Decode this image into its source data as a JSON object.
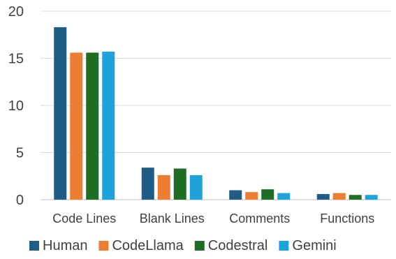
{
  "chart_data": {
    "type": "bar",
    "title": "",
    "xlabel": "",
    "ylabel": "",
    "categories": [
      "Code Lines",
      "Blank Lines",
      "Comments",
      "Functions"
    ],
    "series": [
      {
        "name": "Human",
        "color": "#1f5c86",
        "values": [
          18.3,
          3.4,
          1.0,
          0.6
        ]
      },
      {
        "name": "CodeLlama",
        "color": "#ed7d31",
        "values": [
          15.6,
          2.6,
          0.8,
          0.7
        ]
      },
      {
        "name": "Codestral",
        "color": "#1f6d24",
        "values": [
          15.6,
          3.3,
          1.1,
          0.5
        ]
      },
      {
        "name": "Gemini",
        "color": "#1ea2dc",
        "values": [
          15.7,
          2.6,
          0.7,
          0.5
        ]
      }
    ],
    "ylim": [
      0,
      20
    ],
    "yticks": [
      0,
      5,
      10,
      15,
      20
    ],
    "ytick_labels": [
      "0",
      "5",
      "10",
      "15",
      "20"
    ],
    "grid": true,
    "legend_position": "bottom"
  }
}
